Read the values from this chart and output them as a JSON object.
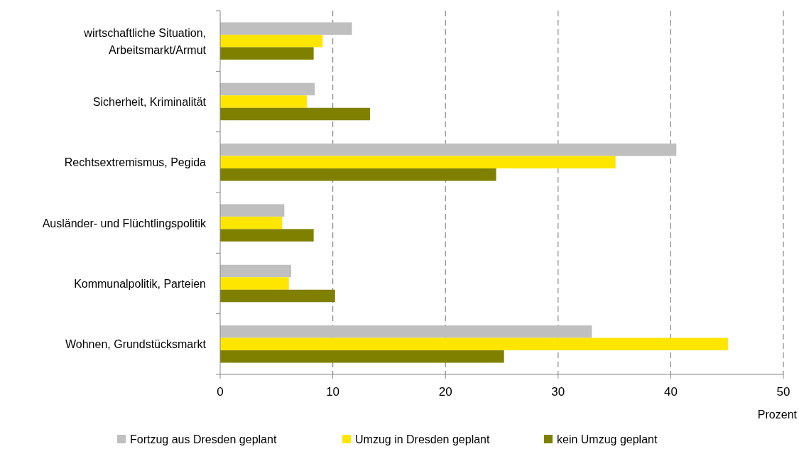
{
  "chart_data": {
    "type": "bar",
    "orientation": "horizontal",
    "xlabel": "Prozent",
    "categories": [
      "wirtschaftliche Situation, Arbeitsmarkt/Armut",
      "Sicherheit, Kriminalität",
      "Rechtsextremismus, Pegida",
      "Ausländer- und Flüchtlingspolitik",
      "Kommunalpolitik, Parteien",
      "Wohnen, Grundstücksmarkt"
    ],
    "series": [
      {
        "name": "Fortzug aus Dresden geplant",
        "color": "#bfbfbf",
        "values": [
          11.7,
          8.4,
          40.5,
          5.7,
          6.3,
          33.0
        ]
      },
      {
        "name": "Umzug in Dresden geplant",
        "color": "#ffe600",
        "values": [
          9.1,
          7.7,
          35.1,
          5.5,
          6.1,
          45.1
        ]
      },
      {
        "name": "kein Umzug geplant",
        "color": "#808000",
        "values": [
          8.3,
          13.3,
          24.5,
          8.3,
          10.2,
          25.2
        ]
      }
    ],
    "xlim": [
      0,
      50
    ],
    "xticks": [
      0,
      10,
      20,
      30,
      40,
      50
    ],
    "grid": "x",
    "legend": "bottom"
  }
}
